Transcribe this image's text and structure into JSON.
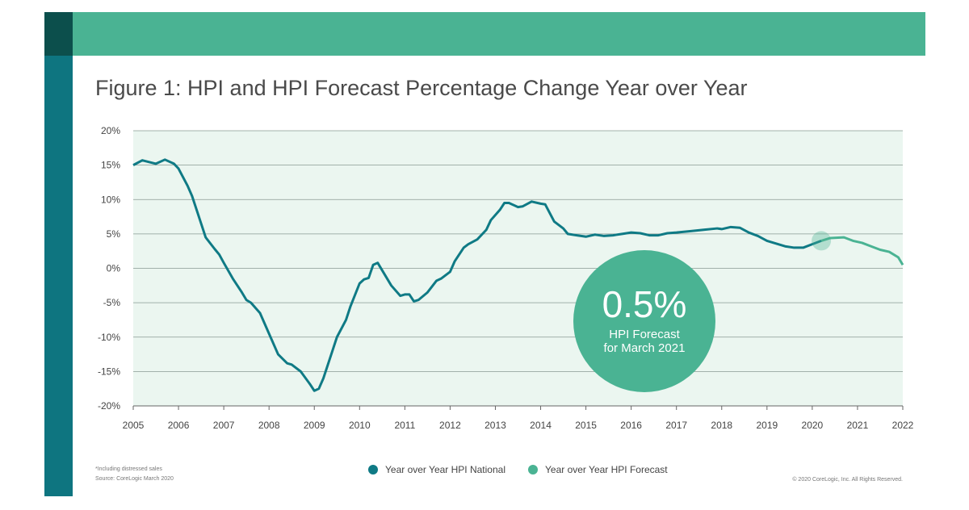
{
  "chart_data": {
    "type": "line",
    "title": "Figure 1: HPI and HPI Forecast Percentage Change Year over Year",
    "xlim": [
      2005,
      2022
    ],
    "xticks": [
      2005,
      2006,
      2007,
      2008,
      2009,
      2010,
      2011,
      2012,
      2013,
      2014,
      2015,
      2016,
      2017,
      2018,
      2019,
      2020,
      2021,
      2022
    ],
    "ylim": [
      -20,
      20
    ],
    "yticks": [
      {
        "value": -20,
        "label": "-20%"
      },
      {
        "value": -15,
        "label": "-15%"
      },
      {
        "value": -10,
        "label": "-10%"
      },
      {
        "value": -5,
        "label": "-5%"
      },
      {
        "value": 0,
        "label": "0%"
      },
      {
        "value": 5,
        "label": "5%"
      },
      {
        "value": 10,
        "label": "10%"
      },
      {
        "value": 15,
        "label": "15%"
      },
      {
        "value": 20,
        "label": "20%"
      }
    ],
    "grid": true,
    "series": [
      {
        "name": "Year over Year HPI National",
        "color": "#0f7a85",
        "x": [
          2005.0,
          2005.2,
          2005.5,
          2005.7,
          2005.9,
          2006.0,
          2006.2,
          2006.3,
          2006.5,
          2006.6,
          2006.8,
          2006.9,
          2007.0,
          2007.2,
          2007.4,
          2007.5,
          2007.6,
          2007.8,
          2008.0,
          2008.2,
          2008.4,
          2008.5,
          2008.7,
          2008.9,
          2009.0,
          2009.1,
          2009.2,
          2009.4,
          2009.5,
          2009.7,
          2009.8,
          2010.0,
          2010.1,
          2010.2,
          2010.3,
          2010.4,
          2010.5,
          2010.7,
          2010.9,
          2011.0,
          2011.1,
          2011.2,
          2011.3,
          2011.5,
          2011.7,
          2011.8,
          2012.0,
          2012.1,
          2012.3,
          2012.4,
          2012.6,
          2012.8,
          2012.9,
          2013.1,
          2013.2,
          2013.3,
          2013.5,
          2013.6,
          2013.8,
          2014.0,
          2014.1,
          2014.3,
          2014.5,
          2014.6,
          2014.8,
          2015.0,
          2015.2,
          2015.4,
          2015.6,
          2015.8,
          2016.0,
          2016.2,
          2016.4,
          2016.6,
          2016.8,
          2017.0,
          2017.3,
          2017.6,
          2017.9,
          2018.0,
          2018.2,
          2018.4,
          2018.6,
          2018.8,
          2019.0,
          2019.2,
          2019.4,
          2019.6,
          2019.8,
          2020.0,
          2020.2
        ],
        "values": [
          15,
          15.7,
          15.2,
          15.8,
          15.2,
          14.5,
          12,
          10.5,
          6.5,
          4.5,
          2.8,
          2,
          0.8,
          -1.5,
          -3.5,
          -4.6,
          -5,
          -6.5,
          -9.5,
          -12.5,
          -13.8,
          -14,
          -15,
          -16.8,
          -17.8,
          -17.5,
          -16,
          -12,
          -10,
          -7.5,
          -5.5,
          -2.2,
          -1.6,
          -1.4,
          0.5,
          0.8,
          -0.3,
          -2.5,
          -4,
          -3.8,
          -3.8,
          -4.8,
          -4.6,
          -3.5,
          -1.8,
          -1.5,
          -0.5,
          1,
          3,
          3.5,
          4.2,
          5.6,
          7,
          8.5,
          9.5,
          9.5,
          8.9,
          9,
          9.7,
          9.4,
          9.3,
          6.8,
          5.8,
          5,
          4.8,
          4.6,
          4.9,
          4.7,
          4.8,
          5,
          5.2,
          5.1,
          4.8,
          4.8,
          5.1,
          5.2,
          5.4,
          5.6,
          5.8,
          5.7,
          6,
          5.9,
          5.2,
          4.7,
          4,
          3.6,
          3.2,
          3,
          3,
          3.5,
          4
        ]
      },
      {
        "name": "Year over Year HPI Forecast",
        "color": "#4ab393",
        "x": [
          2020.2,
          2020.4,
          2020.7,
          2020.9,
          2021.1,
          2021.3,
          2021.5,
          2021.7,
          2021.9,
          2022.0
        ],
        "values": [
          4,
          4.4,
          4.5,
          4,
          3.7,
          3.2,
          2.7,
          2.4,
          1.6,
          0.5
        ]
      }
    ],
    "annotation": {
      "value": 0.5,
      "label": "0.5%",
      "lines": [
        "HPI Forecast",
        "for March 2021"
      ]
    },
    "footnotes": [
      "*Including distressed sales",
      "Source: CoreLogic March 2020"
    ],
    "copyright": "© 2020 CoreLogic, Inc. All Rights Reserved."
  }
}
